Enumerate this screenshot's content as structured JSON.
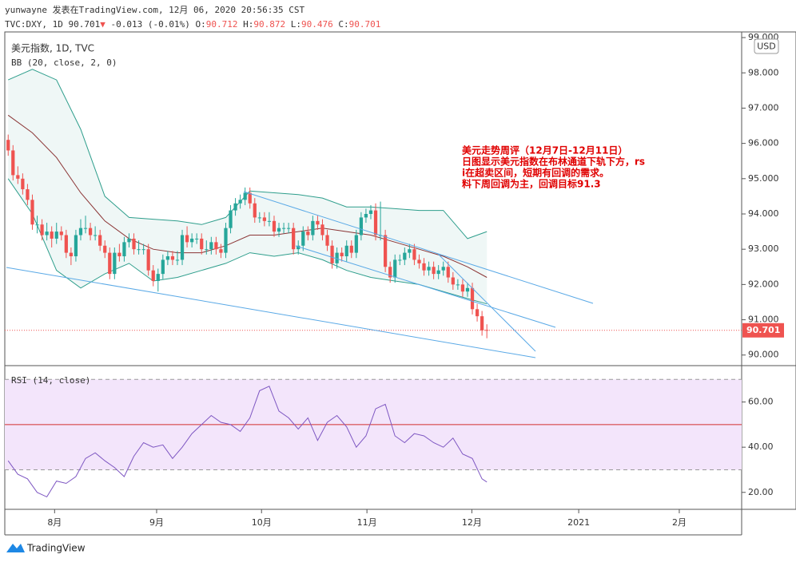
{
  "header": {
    "author_line": "yunwayne 发表在TradingView.com, 12月 06, 2020 20:56:35 CST",
    "symbol": "TVC:DXY, 1D",
    "arrow": "▼",
    "change": -0.013,
    "change_pct": "(-0.01%)",
    "o": "O:",
    "h": "H:",
    "l": "L:",
    "c": "C:"
  },
  "chart_data": [
    {
      "type": "candlestick",
      "name": "美元指数, 1D, TVC",
      "indicator": "BB (20, close, 2, 0)",
      "currency": "USD",
      "up_color": "#26a69a",
      "down_color": "#ef5350",
      "ohlc": [
        [
          96.1,
          96.25,
          95.65,
          95.8
        ],
        [
          95.8,
          95.95,
          94.95,
          95.1
        ],
        [
          95.1,
          95.35,
          94.85,
          95.0
        ],
        [
          95.0,
          95.15,
          94.55,
          94.7
        ],
        [
          94.7,
          94.85,
          94.25,
          94.4
        ],
        [
          94.4,
          94.55,
          93.55,
          93.7
        ],
        [
          93.7,
          93.95,
          93.45,
          93.7
        ],
        [
          93.7,
          93.85,
          93.25,
          93.4
        ],
        [
          93.4,
          93.75,
          93.25,
          93.5
        ],
        [
          93.5,
          93.65,
          93.05,
          93.3
        ],
        [
          93.3,
          93.75,
          93.15,
          93.5
        ],
        [
          93.5,
          93.65,
          93.25,
          93.4
        ],
        [
          93.4,
          93.55,
          92.75,
          92.9
        ],
        [
          92.9,
          93.05,
          92.55,
          92.8
        ],
        [
          92.8,
          93.55,
          92.65,
          93.4
        ],
        [
          93.4,
          93.85,
          93.25,
          93.6
        ],
        [
          93.6,
          93.95,
          93.45,
          93.6
        ],
        [
          93.6,
          93.75,
          93.25,
          93.4
        ],
        [
          93.4,
          93.65,
          93.25,
          93.4
        ],
        [
          93.4,
          93.55,
          92.95,
          93.1
        ],
        [
          93.1,
          93.25,
          92.75,
          92.9
        ],
        [
          92.9,
          93.05,
          92.15,
          92.3
        ],
        [
          92.3,
          93.05,
          92.15,
          92.9
        ],
        [
          92.9,
          93.15,
          92.65,
          92.8
        ],
        [
          92.8,
          93.35,
          92.65,
          93.2
        ],
        [
          93.2,
          93.45,
          93.05,
          93.3
        ],
        [
          93.3,
          93.45,
          92.85,
          93.0
        ],
        [
          93.0,
          93.25,
          92.85,
          93.0
        ],
        [
          93.0,
          93.15,
          92.85,
          93.0
        ],
        [
          93.0,
          93.15,
          92.25,
          92.4
        ],
        [
          92.4,
          92.55,
          91.95,
          92.1
        ],
        [
          92.1,
          92.45,
          91.8,
          92.3
        ],
        [
          92.3,
          92.85,
          92.15,
          92.7
        ],
        [
          92.7,
          92.95,
          92.55,
          92.8
        ],
        [
          92.8,
          92.95,
          92.55,
          92.7
        ],
        [
          92.7,
          92.95,
          92.55,
          92.7
        ],
        [
          92.7,
          93.55,
          92.55,
          93.4
        ],
        [
          93.4,
          93.65,
          93.05,
          93.2
        ],
        [
          93.2,
          93.45,
          93.05,
          93.3
        ],
        [
          93.3,
          93.45,
          93.15,
          93.3
        ],
        [
          93.3,
          93.45,
          92.85,
          93.0
        ],
        [
          93.0,
          93.25,
          92.85,
          93.0
        ],
        [
          93.0,
          93.35,
          92.85,
          93.2
        ],
        [
          93.2,
          93.35,
          92.85,
          93.0
        ],
        [
          93.0,
          93.15,
          92.75,
          92.9
        ],
        [
          92.9,
          93.75,
          92.75,
          93.6
        ],
        [
          93.6,
          94.25,
          93.45,
          94.1
        ],
        [
          94.1,
          94.45,
          93.95,
          94.3
        ],
        [
          94.3,
          94.55,
          94.15,
          94.4
        ],
        [
          94.4,
          94.75,
          94.25,
          94.6
        ],
        [
          94.6,
          94.75,
          94.15,
          94.3
        ],
        [
          94.3,
          94.45,
          93.75,
          93.9
        ],
        [
          93.9,
          94.05,
          93.75,
          93.9
        ],
        [
          93.9,
          94.05,
          93.65,
          93.8
        ],
        [
          93.8,
          94.05,
          93.65,
          93.8
        ],
        [
          93.8,
          93.95,
          93.35,
          93.5
        ],
        [
          93.5,
          93.75,
          93.35,
          93.6
        ],
        [
          93.6,
          93.75,
          93.45,
          93.6
        ],
        [
          93.6,
          93.75,
          93.45,
          93.6
        ],
        [
          93.6,
          93.75,
          92.85,
          93.0
        ],
        [
          93.0,
          93.25,
          92.85,
          93.1
        ],
        [
          93.1,
          93.65,
          92.95,
          93.5
        ],
        [
          93.5,
          93.65,
          93.25,
          93.4
        ],
        [
          93.4,
          93.95,
          93.25,
          93.8
        ],
        [
          93.8,
          93.95,
          93.55,
          93.7
        ],
        [
          93.7,
          93.85,
          93.25,
          93.4
        ],
        [
          93.4,
          93.55,
          92.95,
          93.1
        ],
        [
          93.1,
          93.25,
          92.45,
          92.6
        ],
        [
          92.6,
          93.05,
          92.45,
          92.9
        ],
        [
          92.9,
          93.05,
          92.65,
          92.8
        ],
        [
          92.8,
          93.25,
          92.65,
          93.1
        ],
        [
          93.1,
          93.25,
          92.75,
          92.9
        ],
        [
          92.9,
          93.55,
          92.75,
          93.4
        ],
        [
          93.4,
          94.05,
          93.25,
          93.9
        ],
        [
          93.9,
          94.15,
          93.75,
          94.0
        ],
        [
          94.0,
          94.25,
          93.85,
          94.1
        ],
        [
          94.1,
          94.3,
          93.25,
          93.4
        ],
        [
          93.4,
          94.35,
          93.25,
          93.4
        ],
        [
          93.4,
          93.55,
          92.35,
          92.5
        ],
        [
          92.5,
          92.65,
          92.05,
          92.2
        ],
        [
          92.2,
          92.85,
          92.05,
          92.7
        ],
        [
          92.7,
          92.85,
          92.55,
          92.7
        ],
        [
          92.7,
          93.05,
          92.55,
          92.9
        ],
        [
          92.9,
          93.15,
          92.75,
          93.0
        ],
        [
          93.0,
          93.15,
          92.55,
          92.7
        ],
        [
          92.7,
          92.85,
          92.45,
          92.6
        ],
        [
          92.6,
          92.75,
          92.25,
          92.4
        ],
        [
          92.4,
          92.65,
          92.25,
          92.5
        ],
        [
          92.5,
          92.65,
          92.15,
          92.3
        ],
        [
          92.3,
          92.55,
          92.15,
          92.4
        ],
        [
          92.4,
          92.65,
          92.25,
          92.5
        ],
        [
          92.5,
          92.65,
          92.05,
          92.2
        ],
        [
          92.2,
          92.35,
          91.85,
          92.0
        ],
        [
          92.0,
          92.15,
          91.85,
          92.0
        ],
        [
          92.0,
          92.15,
          91.65,
          91.8
        ],
        [
          91.8,
          92.05,
          91.65,
          91.9
        ],
        [
          91.9,
          92.05,
          91.15,
          91.3
        ],
        [
          91.3,
          91.45,
          90.95,
          91.1
        ],
        [
          91.1,
          91.25,
          90.55,
          90.7
        ],
        [
          90.712,
          90.872,
          90.476,
          90.701
        ]
      ],
      "bands": {
        "x": [
          0,
          5,
          10,
          15,
          20,
          25,
          30,
          35,
          40,
          45,
          50,
          55,
          60,
          65,
          70,
          75,
          80,
          85,
          90,
          95,
          99
        ],
        "upper": {
          "color": "#2e9e8c",
          "values": [
            97.8,
            98.1,
            97.8,
            96.4,
            94.5,
            93.9,
            93.85,
            93.8,
            93.7,
            93.9,
            94.65,
            94.6,
            94.55,
            94.45,
            94.2,
            94.2,
            94.15,
            94.1,
            94.1,
            93.3,
            93.5
          ]
        },
        "middle": {
          "color": "#8b3535",
          "values": [
            96.8,
            96.3,
            95.6,
            94.6,
            93.8,
            93.3,
            93.0,
            92.9,
            92.9,
            93.1,
            93.4,
            93.4,
            93.5,
            93.6,
            93.5,
            93.4,
            93.2,
            93.0,
            92.8,
            92.5,
            92.2
          ]
        },
        "lower": {
          "color": "#2e9e8c",
          "values": [
            95.0,
            94.0,
            92.4,
            91.9,
            92.3,
            92.6,
            92.1,
            92.2,
            92.4,
            92.6,
            92.9,
            92.8,
            92.9,
            92.7,
            92.4,
            92.2,
            92.1,
            92.0,
            91.8,
            91.6,
            91.45
          ]
        }
      },
      "xlim": [
        -0.7,
        151.7
      ],
      "xticks": [
        {
          "value": 9.6,
          "label": "8月"
        },
        {
          "value": 30.7,
          "label": "9月"
        },
        {
          "value": 52.4,
          "label": "10月"
        },
        {
          "value": 74.2,
          "label": "11月"
        },
        {
          "value": 95.9,
          "label": "12月"
        },
        {
          "value": 118,
          "label": "2021"
        },
        {
          "value": 138.8,
          "label": "2月"
        }
      ],
      "ylim": [
        89.7,
        99.16
      ],
      "yticks": [
        {
          "value": 90,
          "label": "90.000"
        },
        {
          "value": 91,
          "label": "91.000"
        },
        {
          "value": 92,
          "label": "92.000"
        },
        {
          "value": 93,
          "label": "93.000"
        },
        {
          "value": 94,
          "label": "94.000"
        },
        {
          "value": 95,
          "label": "95.000"
        },
        {
          "value": 96,
          "label": "96.000"
        },
        {
          "value": 97,
          "label": "97.000"
        },
        {
          "value": 98,
          "label": "98.000"
        },
        {
          "value": 99,
          "label": "99.000"
        }
      ],
      "annotations": [
        "美元走势周评（12月7日-12月11日）",
        "日图显示美元指数在布林通道下轨下方，rs",
        "i在超卖区间，短期有回调的需求。",
        "料下周回调为主，回调目标91.3"
      ]
    },
    {
      "type": "line",
      "name": "RSI (14, close)",
      "color": "#7e57c2",
      "x": [
        0,
        2,
        4,
        6,
        8,
        10,
        12,
        14,
        16,
        18,
        20,
        22,
        24,
        26,
        28,
        30,
        32,
        34,
        36,
        38,
        40,
        42,
        44,
        46,
        48,
        50,
        52,
        54,
        56,
        58,
        60,
        62,
        64,
        66,
        68,
        70,
        72,
        74,
        76,
        78,
        80,
        82,
        84,
        86,
        88,
        90,
        92,
        94,
        96,
        98,
        99
      ],
      "values": [
        34,
        28,
        26,
        20,
        18,
        25,
        24,
        27,
        35,
        37.5,
        34,
        31,
        27,
        36,
        42,
        40,
        41,
        35,
        40,
        46,
        50,
        54,
        51,
        50,
        47,
        53,
        65,
        67,
        56,
        53,
        48,
        53,
        43,
        51,
        54,
        49,
        40,
        45,
        57,
        59,
        45,
        42,
        46,
        45,
        42,
        40,
        44,
        37,
        35,
        26,
        24.6
      ],
      "band": [
        30,
        70
      ],
      "midline": 50,
      "ylim": [
        12.5,
        76.1
      ],
      "yticks": [
        {
          "value": 20,
          "label": "20.00"
        },
        {
          "value": 40,
          "label": "40.00"
        },
        {
          "value": 60,
          "label": "60.00"
        }
      ]
    }
  ],
  "footer": {
    "logo": "TradingView"
  }
}
